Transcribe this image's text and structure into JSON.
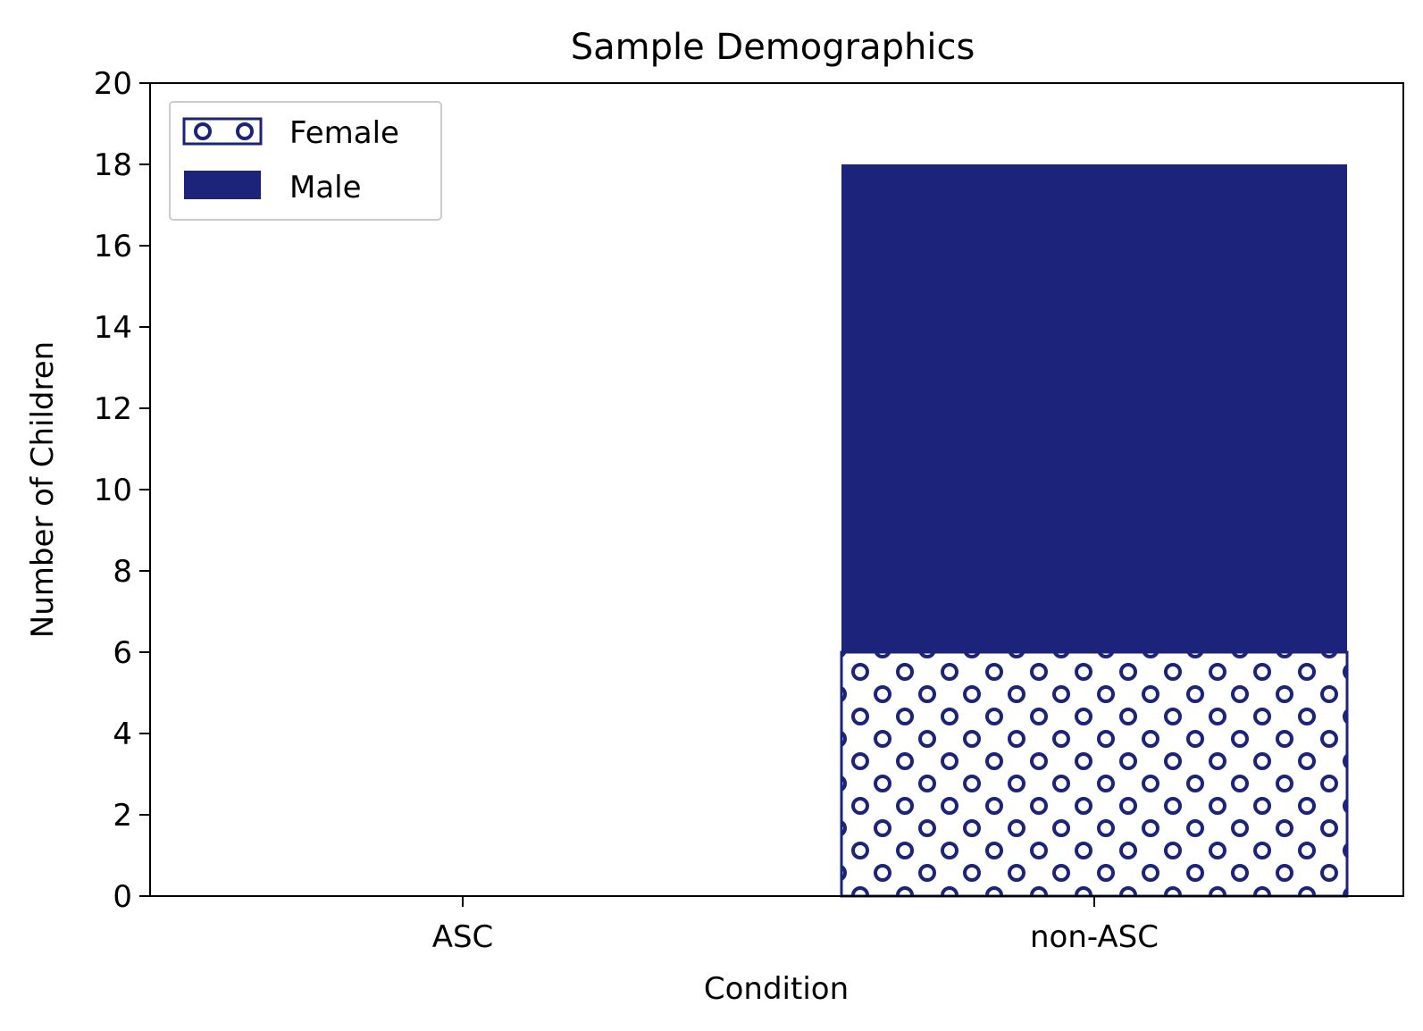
{
  "chart_data": {
    "type": "bar",
    "stacked": true,
    "title": "Sample Demographics",
    "xlabel": "Condition",
    "ylabel": "Number of Children",
    "categories": [
      "ASC",
      "non-ASC"
    ],
    "series": [
      {
        "name": "Female",
        "values": [
          0,
          6
        ],
        "pattern": "circles"
      },
      {
        "name": "Male",
        "values": [
          0,
          12
        ],
        "pattern": "solid"
      }
    ],
    "ylim": [
      0,
      20
    ],
    "yticks": [
      0,
      2,
      4,
      6,
      8,
      10,
      12,
      14,
      16,
      18,
      20
    ],
    "grid": false,
    "legend_position": "top-left",
    "colors": {
      "bar": "#1b237b",
      "axis": "#000000",
      "background": "#ffffff"
    }
  }
}
